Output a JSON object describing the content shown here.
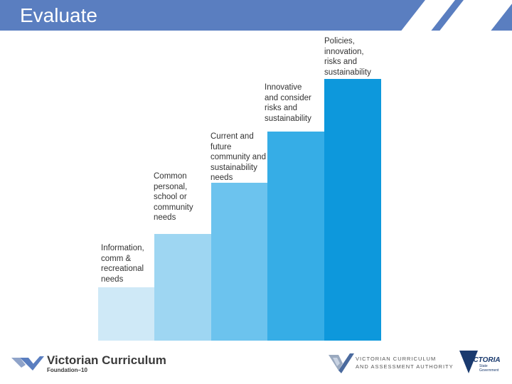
{
  "header": {
    "title": "Evaluate"
  },
  "steps": [
    {
      "label_lines": [
        "Information,",
        "comm &",
        "recreational",
        "needs"
      ],
      "color": "#cfe9f7"
    },
    {
      "label_lines": [
        "Common",
        "personal,",
        "school or",
        "community",
        "needs"
      ],
      "color": "#9ed6f2"
    },
    {
      "label_lines": [
        "Current and",
        "future",
        "community and",
        "sustainability",
        "needs"
      ],
      "color": "#6cc3ee"
    },
    {
      "label_lines": [
        "Innovative",
        "and consider",
        "risks and",
        "sustainability"
      ],
      "color": "#36ade6"
    },
    {
      "label_lines": [
        "Policies,",
        "innovation,",
        "risks and",
        "sustainability"
      ],
      "color": "#0d98dc"
    }
  ],
  "footer": {
    "vc_title": "Victorian Curriculum",
    "vc_subtitle": "Foundation–10",
    "vcaa_line1": "VICTORIAN CURRICULUM",
    "vcaa_line2": "AND ASSESSMENT AUTHORITY",
    "vic_name": "VICTORIA",
    "vic_sub_line1": "State",
    "vic_sub_line2": "Government"
  }
}
